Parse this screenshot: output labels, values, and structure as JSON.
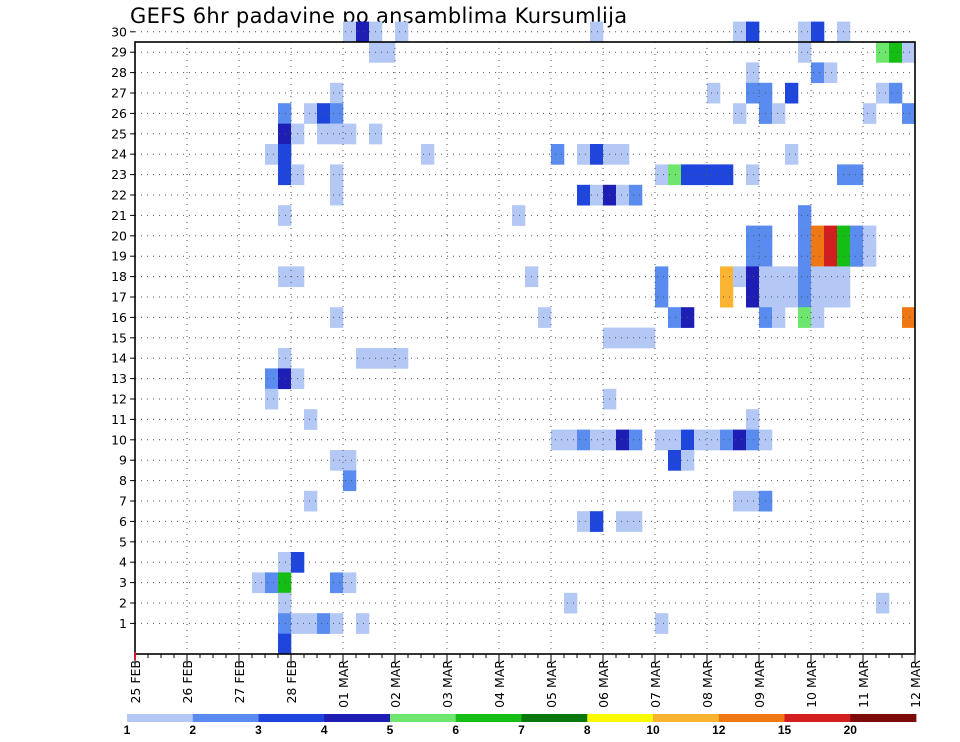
{
  "chart_data": {
    "type": "heatmap",
    "title": "GEFS 6hr padavine po ansamblima Kursumlija",
    "xlabel": "",
    "ylabel": "",
    "members": [
      1,
      2,
      3,
      4,
      5,
      6,
      7,
      8,
      9,
      10,
      11,
      12,
      13,
      14,
      15,
      16,
      17,
      18,
      19,
      20,
      21,
      22,
      23,
      24,
      25,
      26,
      27,
      28,
      29,
      30
    ],
    "x_tick_labels": [
      "25 FEB",
      "26 FEB",
      "27 FEB",
      "28 FEB",
      "01 MAR",
      "02 MAR",
      "03 MAR",
      "04 MAR",
      "05 MAR",
      "06 MAR",
      "07 MAR",
      "08 MAR",
      "09 MAR",
      "10 MAR",
      "11 MAR",
      "12 MAR"
    ],
    "time_step_hours": 6,
    "steps_per_day": 4,
    "legend_levels": [
      "1",
      "2",
      "3",
      "4",
      "5",
      "6",
      "7",
      "8",
      "10",
      "12",
      "15",
      "20"
    ],
    "legend_colors": [
      "#b4c8f5",
      "#5a8cf0",
      "#1e46dc",
      "#1e1eb4",
      "#6ee66e",
      "#14be14",
      "#0a780a",
      "#fafa00",
      "#fab432",
      "#f07814",
      "#d21e1e",
      "#7d0a0a"
    ],
    "cells": [
      {
        "member": 30,
        "day": 4.0,
        "value": 1
      },
      {
        "member": 30,
        "day": 4.25,
        "value": 4
      },
      {
        "member": 30,
        "day": 4.5,
        "value": 1
      },
      {
        "member": 30,
        "day": 5.0,
        "value": 1
      },
      {
        "member": 30,
        "day": 8.75,
        "value": 1
      },
      {
        "member": 30,
        "day": 11.5,
        "value": 1
      },
      {
        "member": 30,
        "day": 11.75,
        "value": 3
      },
      {
        "member": 30,
        "day": 12.75,
        "value": 1
      },
      {
        "member": 30,
        "day": 13.0,
        "value": 3
      },
      {
        "member": 30,
        "day": 13.5,
        "value": 1
      },
      {
        "member": 29,
        "day": 4.5,
        "value": 1
      },
      {
        "member": 29,
        "day": 4.75,
        "value": 1
      },
      {
        "member": 29,
        "day": 12.75,
        "value": 1
      },
      {
        "member": 29,
        "day": 14.25,
        "value": 5
      },
      {
        "member": 29,
        "day": 14.5,
        "value": 6
      },
      {
        "member": 29,
        "day": 14.75,
        "value": 1
      },
      {
        "member": 28,
        "day": 11.75,
        "value": 1
      },
      {
        "member": 28,
        "day": 13.0,
        "value": 2
      },
      {
        "member": 28,
        "day": 13.25,
        "value": 1
      },
      {
        "member": 27,
        "day": 3.75,
        "value": 1
      },
      {
        "member": 27,
        "day": 11.0,
        "value": 1
      },
      {
        "member": 27,
        "day": 11.75,
        "value": 2
      },
      {
        "member": 27,
        "day": 12.0,
        "value": 2
      },
      {
        "member": 27,
        "day": 12.5,
        "value": 3
      },
      {
        "member": 27,
        "day": 14.25,
        "value": 1
      },
      {
        "member": 27,
        "day": 14.5,
        "value": 2
      },
      {
        "member": 26,
        "day": 2.75,
        "value": 2
      },
      {
        "member": 26,
        "day": 3.25,
        "value": 1
      },
      {
        "member": 26,
        "day": 3.5,
        "value": 3
      },
      {
        "member": 26,
        "day": 3.75,
        "value": 2
      },
      {
        "member": 26,
        "day": 11.5,
        "value": 1
      },
      {
        "member": 26,
        "day": 12.0,
        "value": 2
      },
      {
        "member": 26,
        "day": 12.25,
        "value": 1
      },
      {
        "member": 26,
        "day": 14.0,
        "value": 1
      },
      {
        "member": 26,
        "day": 14.75,
        "value": 2
      },
      {
        "member": 25,
        "day": 2.75,
        "value": 4
      },
      {
        "member": 25,
        "day": 3.0,
        "value": 1
      },
      {
        "member": 25,
        "day": 3.5,
        "value": 1
      },
      {
        "member": 25,
        "day": 3.75,
        "value": 1
      },
      {
        "member": 25,
        "day": 4.0,
        "value": 1
      },
      {
        "member": 25,
        "day": 4.5,
        "value": 1
      },
      {
        "member": 24,
        "day": 2.5,
        "value": 1
      },
      {
        "member": 24,
        "day": 2.75,
        "value": 3
      },
      {
        "member": 24,
        "day": 5.5,
        "value": 1
      },
      {
        "member": 24,
        "day": 8.0,
        "value": 2
      },
      {
        "member": 24,
        "day": 8.5,
        "value": 1
      },
      {
        "member": 24,
        "day": 8.75,
        "value": 3
      },
      {
        "member": 24,
        "day": 9.0,
        "value": 1
      },
      {
        "member": 24,
        "day": 9.25,
        "value": 1
      },
      {
        "member": 24,
        "day": 12.5,
        "value": 1
      },
      {
        "member": 23,
        "day": 2.75,
        "value": 3
      },
      {
        "member": 23,
        "day": 3.0,
        "value": 1
      },
      {
        "member": 23,
        "day": 3.75,
        "value": 1
      },
      {
        "member": 23,
        "day": 10.0,
        "value": 1
      },
      {
        "member": 23,
        "day": 10.25,
        "value": 5
      },
      {
        "member": 23,
        "day": 10.5,
        "value": 3
      },
      {
        "member": 23,
        "day": 10.75,
        "value": 3
      },
      {
        "member": 23,
        "day": 11.0,
        "value": 3
      },
      {
        "member": 23,
        "day": 11.25,
        "value": 3
      },
      {
        "member": 23,
        "day": 11.75,
        "value": 1
      },
      {
        "member": 23,
        "day": 13.5,
        "value": 2
      },
      {
        "member": 23,
        "day": 13.75,
        "value": 2
      },
      {
        "member": 22,
        "day": 3.75,
        "value": 1
      },
      {
        "member": 22,
        "day": 8.5,
        "value": 3
      },
      {
        "member": 22,
        "day": 8.75,
        "value": 1
      },
      {
        "member": 22,
        "day": 9.0,
        "value": 4
      },
      {
        "member": 22,
        "day": 9.25,
        "value": 1
      },
      {
        "member": 22,
        "day": 9.5,
        "value": 2
      },
      {
        "member": 21,
        "day": 2.75,
        "value": 1
      },
      {
        "member": 21,
        "day": 7.25,
        "value": 1
      },
      {
        "member": 21,
        "day": 12.75,
        "value": 2
      },
      {
        "member": 20,
        "day": 11.75,
        "value": 2
      },
      {
        "member": 20,
        "day": 12.0,
        "value": 2
      },
      {
        "member": 20,
        "day": 12.75,
        "value": 2
      },
      {
        "member": 20,
        "day": 13.0,
        "value": 12
      },
      {
        "member": 20,
        "day": 13.25,
        "value": 15
      },
      {
        "member": 20,
        "day": 13.5,
        "value": 6
      },
      {
        "member": 20,
        "day": 13.75,
        "value": 2
      },
      {
        "member": 20,
        "day": 14.0,
        "value": 1
      },
      {
        "member": 19,
        "day": 11.75,
        "value": 2
      },
      {
        "member": 19,
        "day": 12.0,
        "value": 2
      },
      {
        "member": 19,
        "day": 12.75,
        "value": 2
      },
      {
        "member": 19,
        "day": 13.0,
        "value": 12
      },
      {
        "member": 19,
        "day": 13.25,
        "value": 15
      },
      {
        "member": 19,
        "day": 13.5,
        "value": 6
      },
      {
        "member": 19,
        "day": 13.75,
        "value": 2
      },
      {
        "member": 19,
        "day": 14.0,
        "value": 1
      },
      {
        "member": 18,
        "day": 2.75,
        "value": 1
      },
      {
        "member": 18,
        "day": 3.0,
        "value": 1
      },
      {
        "member": 18,
        "day": 7.5,
        "value": 1
      },
      {
        "member": 18,
        "day": 10.0,
        "value": 2
      },
      {
        "member": 18,
        "day": 11.25,
        "value": 10
      },
      {
        "member": 18,
        "day": 11.5,
        "value": 1
      },
      {
        "member": 18,
        "day": 11.75,
        "value": 4
      },
      {
        "member": 18,
        "day": 12.0,
        "value": 1
      },
      {
        "member": 18,
        "day": 12.25,
        "value": 1
      },
      {
        "member": 18,
        "day": 12.5,
        "value": 1
      },
      {
        "member": 18,
        "day": 12.75,
        "value": 2
      },
      {
        "member": 18,
        "day": 13.0,
        "value": 1
      },
      {
        "member": 18,
        "day": 13.25,
        "value": 1
      },
      {
        "member": 18,
        "day": 13.5,
        "value": 1
      },
      {
        "member": 17,
        "day": 10.0,
        "value": 2
      },
      {
        "member": 17,
        "day": 11.25,
        "value": 10
      },
      {
        "member": 17,
        "day": 11.75,
        "value": 4
      },
      {
        "member": 17,
        "day": 12.0,
        "value": 1
      },
      {
        "member": 17,
        "day": 12.25,
        "value": 1
      },
      {
        "member": 17,
        "day": 12.5,
        "value": 1
      },
      {
        "member": 17,
        "day": 12.75,
        "value": 2
      },
      {
        "member": 17,
        "day": 13.0,
        "value": 1
      },
      {
        "member": 17,
        "day": 13.25,
        "value": 1
      },
      {
        "member": 17,
        "day": 13.5,
        "value": 1
      },
      {
        "member": 16,
        "day": 3.75,
        "value": 1
      },
      {
        "member": 16,
        "day": 7.75,
        "value": 1
      },
      {
        "member": 16,
        "day": 10.25,
        "value": 2
      },
      {
        "member": 16,
        "day": 10.5,
        "value": 4
      },
      {
        "member": 16,
        "day": 12.0,
        "value": 2
      },
      {
        "member": 16,
        "day": 12.25,
        "value": 1
      },
      {
        "member": 16,
        "day": 12.75,
        "value": 5
      },
      {
        "member": 16,
        "day": 13.0,
        "value": 1
      },
      {
        "member": 16,
        "day": 14.75,
        "value": 12
      },
      {
        "member": 15,
        "day": 9.0,
        "value": 1
      },
      {
        "member": 15,
        "day": 9.25,
        "value": 1
      },
      {
        "member": 15,
        "day": 9.5,
        "value": 1
      },
      {
        "member": 15,
        "day": 9.75,
        "value": 1
      },
      {
        "member": 14,
        "day": 2.75,
        "value": 1
      },
      {
        "member": 14,
        "day": 4.25,
        "value": 1
      },
      {
        "member": 14,
        "day": 4.5,
        "value": 1
      },
      {
        "member": 14,
        "day": 4.75,
        "value": 1
      },
      {
        "member": 14,
        "day": 5.0,
        "value": 1
      },
      {
        "member": 13,
        "day": 2.5,
        "value": 2
      },
      {
        "member": 13,
        "day": 2.75,
        "value": 4
      },
      {
        "member": 13,
        "day": 3.0,
        "value": 1
      },
      {
        "member": 12,
        "day": 2.5,
        "value": 1
      },
      {
        "member": 12,
        "day": 9.0,
        "value": 1
      },
      {
        "member": 11,
        "day": 3.25,
        "value": 1
      },
      {
        "member": 11,
        "day": 11.75,
        "value": 1
      },
      {
        "member": 10,
        "day": 8.0,
        "value": 1
      },
      {
        "member": 10,
        "day": 8.25,
        "value": 1
      },
      {
        "member": 10,
        "day": 8.5,
        "value": 2
      },
      {
        "member": 10,
        "day": 8.75,
        "value": 1
      },
      {
        "member": 10,
        "day": 9.0,
        "value": 1
      },
      {
        "member": 10,
        "day": 9.25,
        "value": 4
      },
      {
        "member": 10,
        "day": 9.5,
        "value": 2
      },
      {
        "member": 10,
        "day": 10.0,
        "value": 1
      },
      {
        "member": 10,
        "day": 10.25,
        "value": 1
      },
      {
        "member": 10,
        "day": 10.5,
        "value": 3
      },
      {
        "member": 10,
        "day": 10.75,
        "value": 1
      },
      {
        "member": 10,
        "day": 11.0,
        "value": 1
      },
      {
        "member": 10,
        "day": 11.25,
        "value": 2
      },
      {
        "member": 10,
        "day": 11.5,
        "value": 4
      },
      {
        "member": 10,
        "day": 11.75,
        "value": 2
      },
      {
        "member": 10,
        "day": 12.0,
        "value": 1
      },
      {
        "member": 9,
        "day": 3.75,
        "value": 1
      },
      {
        "member": 9,
        "day": 4.0,
        "value": 1
      },
      {
        "member": 9,
        "day": 10.25,
        "value": 3
      },
      {
        "member": 9,
        "day": 10.5,
        "value": 1
      },
      {
        "member": 8,
        "day": 4.0,
        "value": 2
      },
      {
        "member": 7,
        "day": 3.25,
        "value": 1
      },
      {
        "member": 7,
        "day": 11.5,
        "value": 1
      },
      {
        "member": 7,
        "day": 11.75,
        "value": 1
      },
      {
        "member": 7,
        "day": 12.0,
        "value": 2
      },
      {
        "member": 6,
        "day": 8.5,
        "value": 1
      },
      {
        "member": 6,
        "day": 8.75,
        "value": 3
      },
      {
        "member": 6,
        "day": 9.25,
        "value": 1
      },
      {
        "member": 6,
        "day": 9.5,
        "value": 1
      },
      {
        "member": 4,
        "day": 2.75,
        "value": 1
      },
      {
        "member": 4,
        "day": 3.0,
        "value": 3
      },
      {
        "member": 3,
        "day": 2.25,
        "value": 1
      },
      {
        "member": 3,
        "day": 2.5,
        "value": 2
      },
      {
        "member": 3,
        "day": 2.75,
        "value": 6
      },
      {
        "member": 3,
        "day": 3.75,
        "value": 2
      },
      {
        "member": 3,
        "day": 4.0,
        "value": 1
      },
      {
        "member": 2,
        "day": 2.75,
        "value": 1
      },
      {
        "member": 2,
        "day": 8.25,
        "value": 1
      },
      {
        "member": 2,
        "day": 14.25,
        "value": 1
      },
      {
        "member": 1,
        "day": 2.75,
        "value": 2
      },
      {
        "member": 1,
        "day": 3.0,
        "value": 1
      },
      {
        "member": 1,
        "day": 3.25,
        "value": 1
      },
      {
        "member": 1,
        "day": 3.5,
        "value": 2
      },
      {
        "member": 1,
        "day": 3.75,
        "value": 1
      },
      {
        "member": 1,
        "day": 4.25,
        "value": 1
      },
      {
        "member": 1,
        "day": 10.0,
        "value": 1
      },
      {
        "member": 0,
        "day": 2.75,
        "value": 3
      }
    ],
    "grid": true
  }
}
